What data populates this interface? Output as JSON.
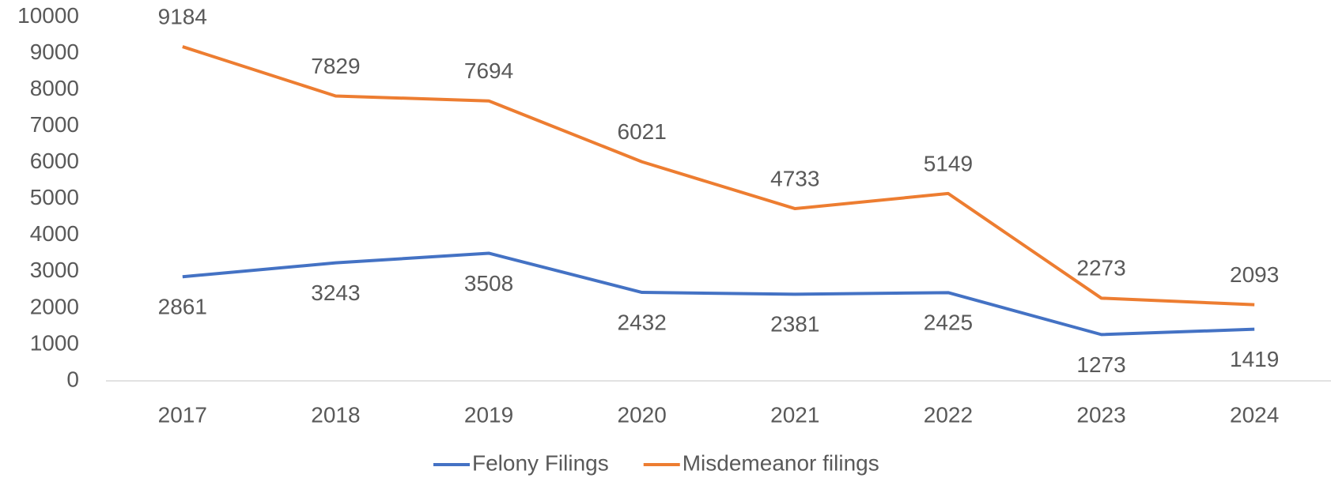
{
  "chart_data": {
    "type": "line",
    "categories": [
      "2017",
      "2018",
      "2019",
      "2020",
      "2021",
      "2022",
      "2023",
      "2024"
    ],
    "series": [
      {
        "name": "Felony Filings",
        "color": "#4472c4",
        "values": [
          2861,
          3243,
          3508,
          2432,
          2381,
          2425,
          1273,
          1419
        ]
      },
      {
        "name": "Misdemeanor filings",
        "color": "#ed7d31",
        "values": [
          9184,
          7829,
          7694,
          6021,
          4733,
          5149,
          2273,
          2093
        ]
      }
    ],
    "ylim": [
      0,
      10000
    ],
    "yticks": [
      0,
      1000,
      2000,
      3000,
      4000,
      5000,
      6000,
      7000,
      8000,
      9000,
      10000
    ],
    "grid": false,
    "legend": "bottom"
  }
}
